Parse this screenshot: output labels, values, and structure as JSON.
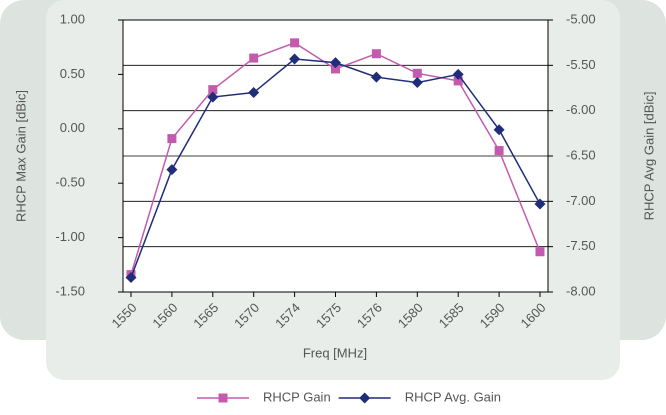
{
  "chart_data": {
    "type": "line",
    "x_label": "Freq [MHz]",
    "y_label": "RHCP Max Gain [dBic]",
    "y2_label": "RHCP Avg Gain [dBic]",
    "categories": [
      "1550",
      "1560",
      "1565",
      "1570",
      "1574",
      "1575",
      "1576",
      "1580",
      "1585",
      "1590",
      "1600"
    ],
    "series": [
      {
        "name": "RHCP Gain",
        "color": "#c35aae",
        "marker": "square",
        "values": [
          -1.34,
          -0.09,
          0.36,
          0.65,
          0.79,
          0.55,
          0.69,
          0.51,
          0.44,
          -0.2,
          -1.13
        ]
      },
      {
        "name": "RHCP Avg. Gain",
        "color": "#1f2d7a",
        "marker": "diamond",
        "axis": "y2",
        "values": [
          -7.84,
          -6.65,
          -5.85,
          -5.8,
          -5.43,
          -5.47,
          -5.63,
          -5.69,
          -5.6,
          -6.21,
          -7.03
        ]
      }
    ],
    "ylim": [
      -1.5,
      1.0
    ],
    "yticks": [
      {
        "value": -1.5,
        "label": "-1.50"
      },
      {
        "value": -1.0,
        "label": "-1.00"
      },
      {
        "value": -0.5,
        "label": "-0.50"
      },
      {
        "value": 0,
        "label": "0.00"
      },
      {
        "value": 0.5,
        "label": "0.50"
      },
      {
        "value": 1.0,
        "label": "1.00"
      }
    ],
    "y2lim": [
      -8.0,
      -5.0
    ],
    "y2ticks": [
      {
        "value": -8.0,
        "label": "-8.00"
      },
      {
        "value": -7.5,
        "label": "-7.50"
      },
      {
        "value": -7.0,
        "label": "-7.00"
      },
      {
        "value": -6.5,
        "label": "-6.50"
      },
      {
        "value": -6.0,
        "label": "-6.00"
      },
      {
        "value": -5.5,
        "label": "-5.50"
      },
      {
        "value": -5.0,
        "label": "-5.00"
      }
    ],
    "grid": true,
    "legend": "bottom"
  }
}
